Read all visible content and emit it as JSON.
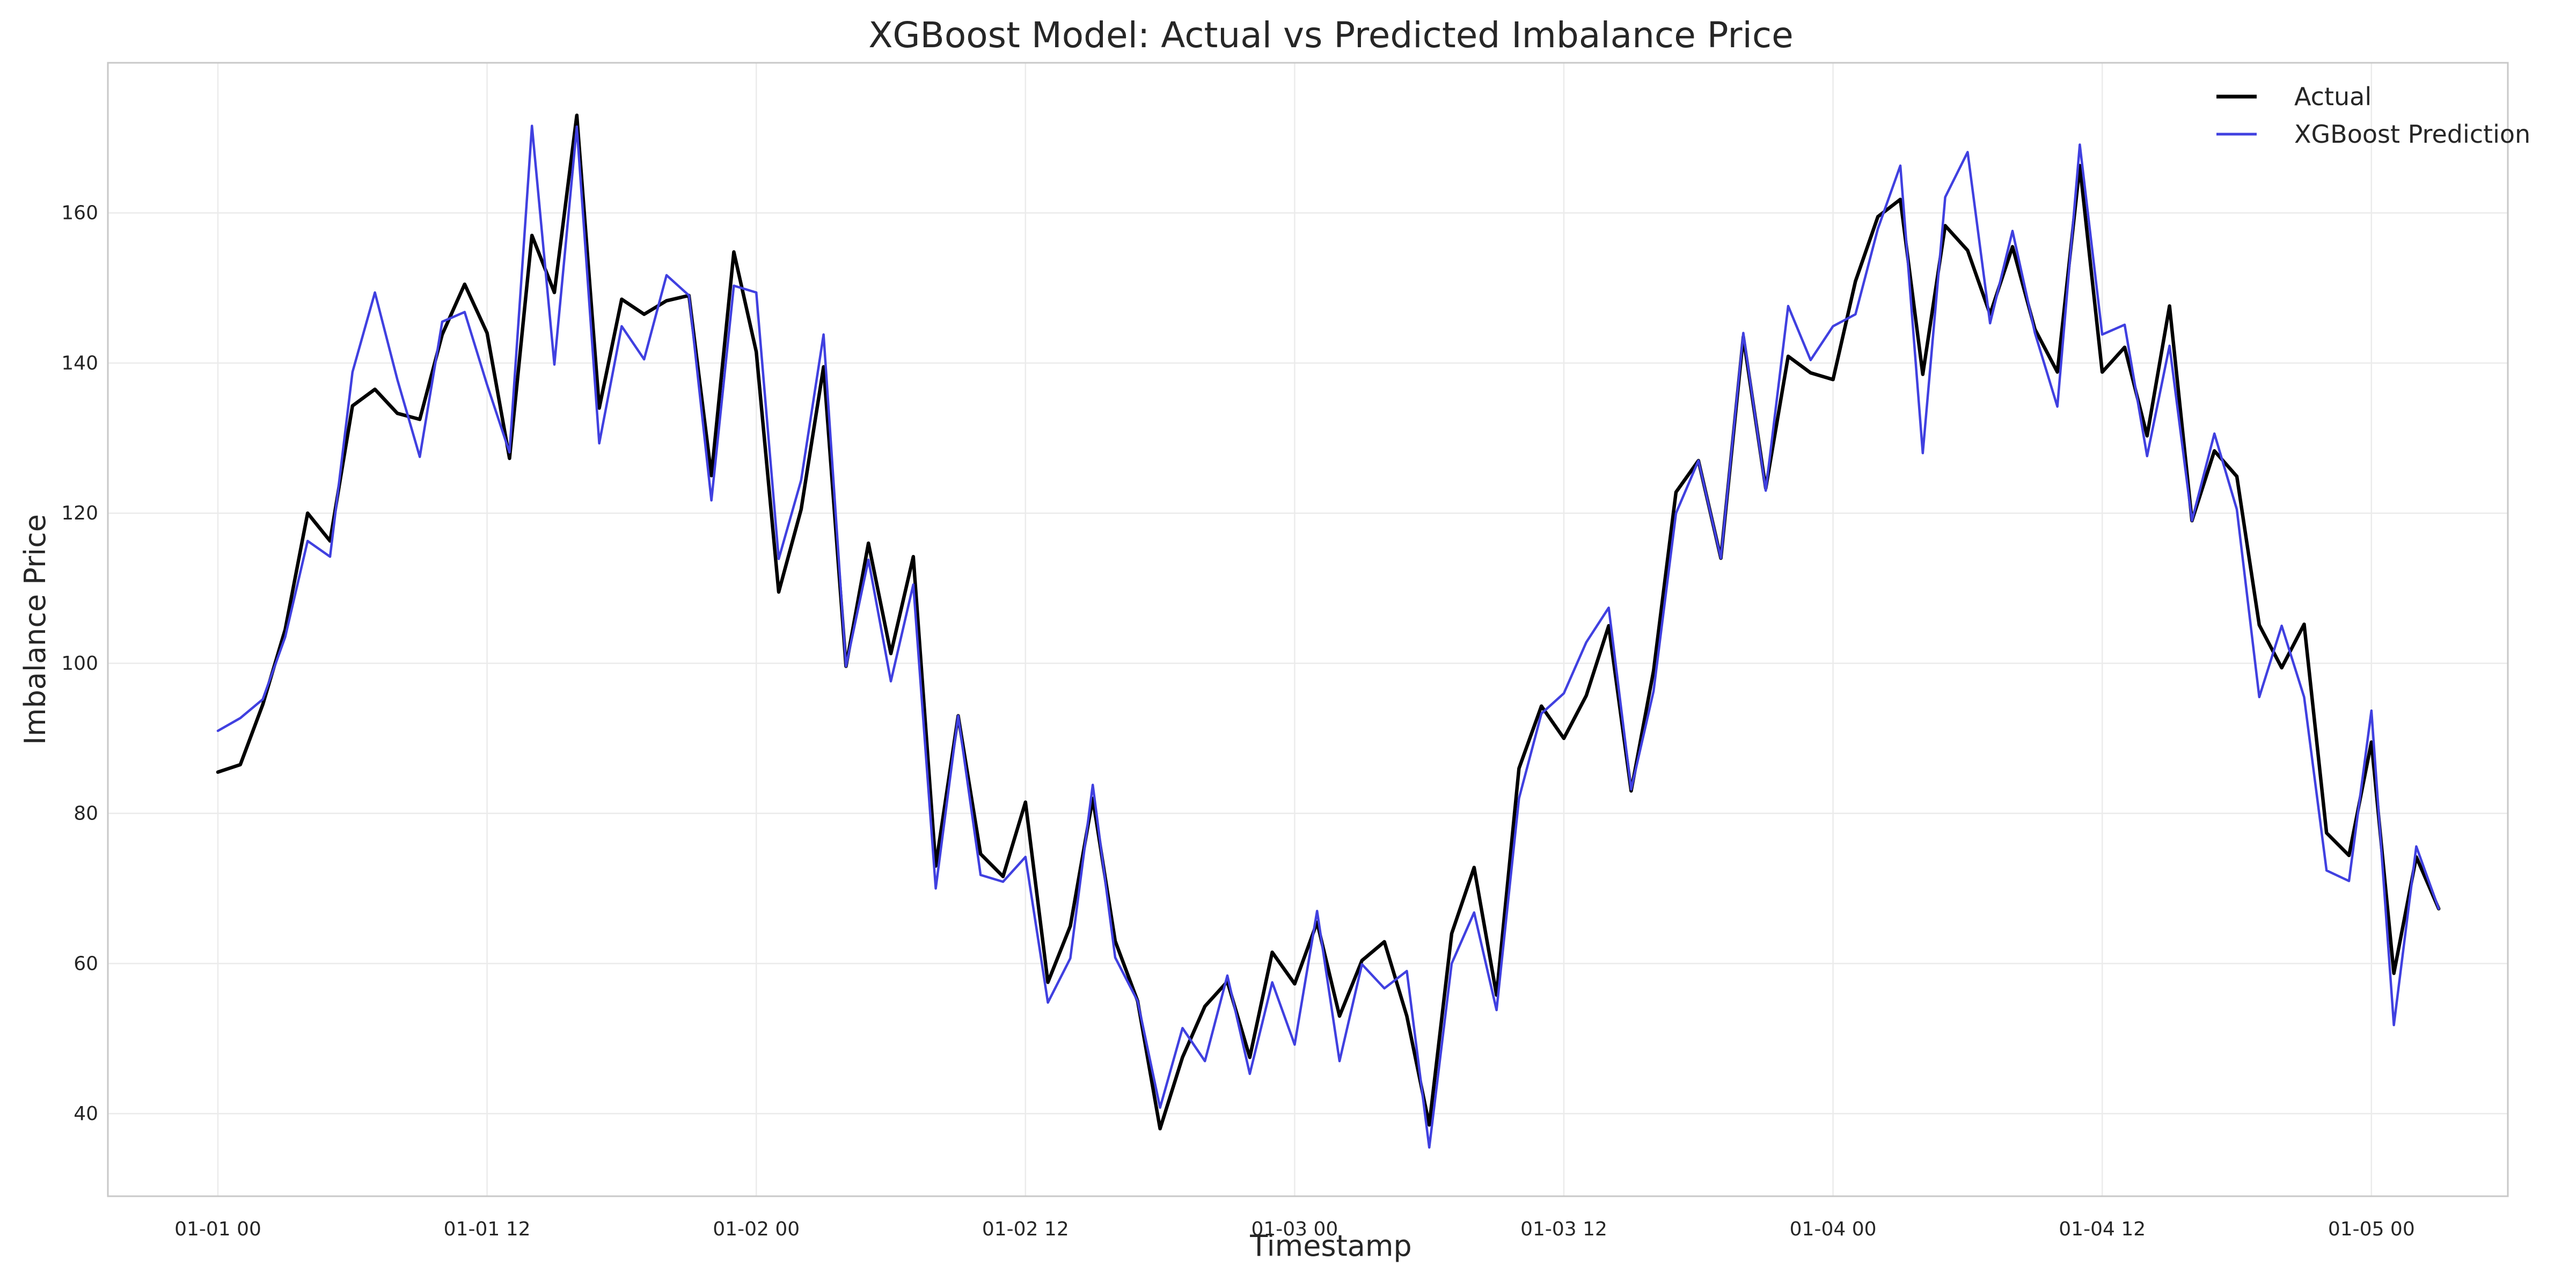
{
  "chart_data": {
    "type": "line",
    "title": "XGBoost Model: Actual vs Predicted Imbalance Price",
    "xlabel": "Timestamp",
    "ylabel": "Imbalance Price",
    "x_tick_labels": [
      "01-01 00",
      "01-01 12",
      "01-02 00",
      "01-02 12",
      "01-03 00",
      "01-03 12",
      "01-04 00",
      "01-04 12",
      "01-05 00"
    ],
    "x_interval_hours": 1,
    "ylim": [
      29,
      180
    ],
    "yticks": [
      40,
      60,
      80,
      100,
      120,
      140,
      160
    ],
    "grid": true,
    "legend_position": "top-right",
    "series": [
      {
        "name": "Actual",
        "color": "#000000",
        "values": [
          85.5,
          86.5,
          94.5,
          104.5,
          120.0,
          116.3,
          134.3,
          136.5,
          133.3,
          132.5,
          143.8,
          150.5,
          144.0,
          127.3,
          157.0,
          149.4,
          173.0,
          134.0,
          148.5,
          146.5,
          148.3,
          149.0,
          125.0,
          154.8,
          141.5,
          109.5,
          120.5,
          139.5,
          99.6,
          116.0,
          101.3,
          114.2,
          73.0,
          93.0,
          74.6,
          71.6,
          81.5,
          57.5,
          65.0,
          82.0,
          63.0,
          55.0,
          38.0,
          47.5,
          54.3,
          57.6,
          47.5,
          61.5,
          57.3,
          65.5,
          53.0,
          60.4,
          62.9,
          53.0,
          38.5,
          64.0,
          72.8,
          55.8,
          86.0,
          94.3,
          90.0,
          95.7,
          105.0,
          83.0,
          99.0,
          122.8,
          127.0,
          114.0,
          143.5,
          123.3,
          140.9,
          138.7,
          137.8,
          150.9,
          159.5,
          161.8,
          138.5,
          158.3,
          155.0,
          146.5,
          155.5,
          144.5,
          138.8,
          166.3,
          138.8,
          142.1,
          130.3,
          147.6,
          119.0,
          128.3,
          124.9,
          105.1,
          99.4,
          105.2,
          77.4,
          74.4,
          89.5,
          58.7,
          74.2,
          67.3
        ]
      },
      {
        "name": "XGBoost Prediction",
        "color": "#4040e0",
        "values": [
          91.0,
          92.7,
          95.2,
          103.5,
          116.3,
          114.2,
          138.8,
          149.4,
          137.8,
          127.5,
          145.5,
          146.8,
          137.1,
          128.1,
          171.6,
          139.8,
          171.5,
          129.3,
          144.9,
          140.5,
          151.7,
          149.0,
          121.7,
          150.3,
          149.4,
          113.9,
          124.4,
          143.8,
          99.6,
          113.8,
          97.6,
          110.5,
          70.0,
          93.0,
          71.8,
          70.9,
          74.2,
          54.8,
          60.7,
          83.8,
          60.8,
          55.0,
          40.8,
          51.4,
          47.0,
          58.4,
          45.3,
          57.5,
          49.2,
          67.0,
          47.0,
          59.9,
          56.7,
          59.0,
          35.5,
          60.0,
          66.8,
          53.8,
          82.0,
          93.3,
          96.0,
          102.8,
          107.4,
          83.2,
          96.3,
          120.0,
          127.0,
          114.0,
          144.0,
          123.0,
          147.6,
          140.4,
          144.9,
          146.5,
          157.9,
          166.3,
          128.0,
          162.1,
          168.1,
          145.3,
          157.6,
          144.0,
          134.2,
          169.1,
          143.8,
          145.1,
          127.6,
          142.3,
          119.0,
          130.6,
          120.5,
          95.5,
          105.0,
          95.5,
          72.4,
          71.0,
          93.7,
          51.8,
          75.6,
          67.3
        ]
      }
    ]
  }
}
